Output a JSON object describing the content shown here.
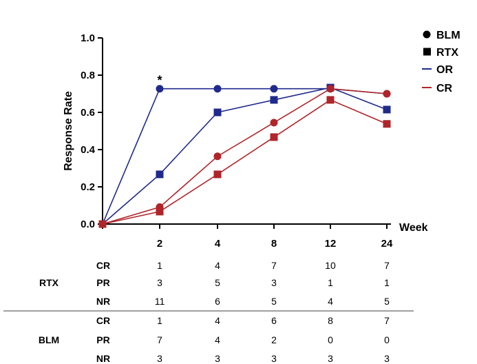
{
  "chart_data": {
    "type": "line",
    "x_categories": [
      "",
      "2",
      "4",
      "8",
      "12",
      "24"
    ],
    "xlabel": "Week",
    "ylabel": "Response Rate",
    "ylim": [
      0,
      1.0
    ],
    "yticks": [
      "0.0",
      "0.2",
      "0.4",
      "0.6",
      "0.8",
      "1.0"
    ],
    "legend": [
      {
        "label": "BLM",
        "kind": "marker",
        "marker": "circle",
        "color": "#000000"
      },
      {
        "label": "RTX",
        "kind": "marker",
        "marker": "square",
        "color": "#000000"
      },
      {
        "label": "OR",
        "kind": "line",
        "color": "#1f2a8c"
      },
      {
        "label": "CR",
        "kind": "line",
        "color": "#b0252a"
      }
    ],
    "series": [
      {
        "group": "BLM",
        "metric": "OR",
        "marker": "circle",
        "color": "#1f2a8c",
        "values": [
          0.0,
          0.727,
          0.727,
          0.727,
          0.727,
          0.7
        ]
      },
      {
        "group": "RTX",
        "metric": "OR",
        "marker": "square",
        "color": "#1f2a8c",
        "values": [
          0.0,
          0.267,
          0.6,
          0.667,
          0.733,
          0.615
        ]
      },
      {
        "group": "BLM",
        "metric": "CR",
        "marker": "circle",
        "color": "#b0252a",
        "values": [
          0.0,
          0.091,
          0.364,
          0.545,
          0.727,
          0.7
        ]
      },
      {
        "group": "RTX",
        "metric": "CR",
        "marker": "square",
        "color": "#b0252a",
        "values": [
          0.0,
          0.067,
          0.267,
          0.467,
          0.667,
          0.538
        ]
      }
    ],
    "annotations": [
      {
        "text": "*",
        "at_category": "2"
      }
    ],
    "table": {
      "groups": [
        {
          "name": "RTX",
          "rows": [
            {
              "label": "CR",
              "values": [
                "1",
                "4",
                "7",
                "10",
                "7"
              ]
            },
            {
              "label": "PR",
              "values": [
                "3",
                "5",
                "3",
                "1",
                "1"
              ]
            },
            {
              "label": "NR",
              "values": [
                "11",
                "6",
                "5",
                "4",
                "5"
              ]
            }
          ]
        },
        {
          "name": "BLM",
          "rows": [
            {
              "label": "CR",
              "values": [
                "1",
                "4",
                "6",
                "8",
                "7"
              ]
            },
            {
              "label": "PR",
              "values": [
                "7",
                "4",
                "2",
                "0",
                "0"
              ]
            },
            {
              "label": "NR",
              "values": [
                "3",
                "3",
                "3",
                "3",
                "3"
              ]
            }
          ]
        }
      ]
    }
  }
}
